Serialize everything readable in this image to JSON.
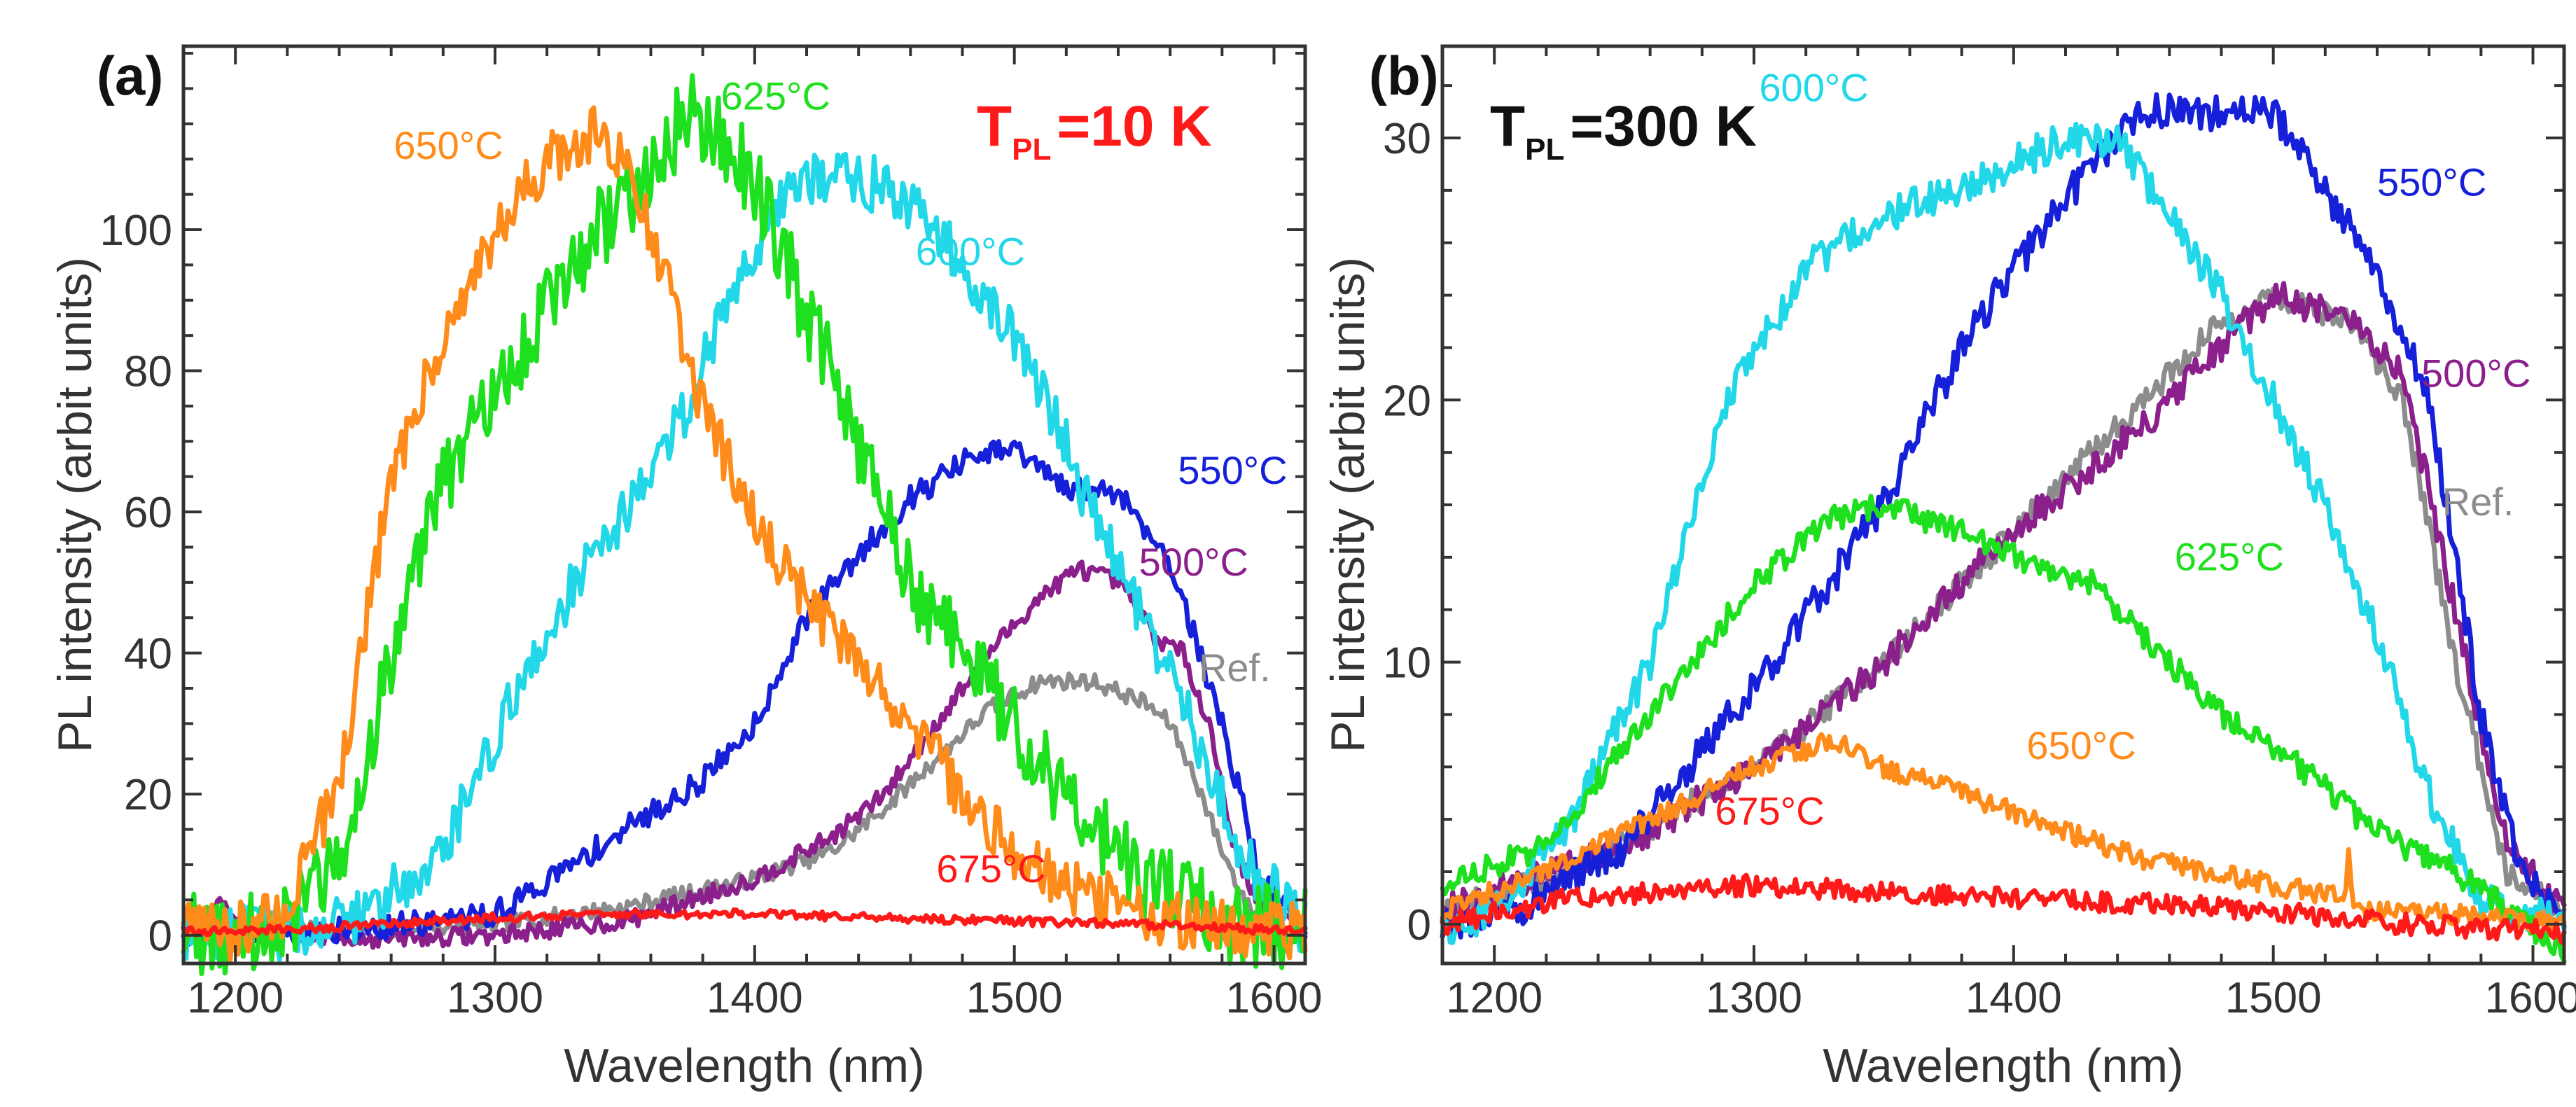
{
  "chart_data": [
    {
      "type": "line",
      "panel_label": "(a)",
      "annotation": {
        "main": "T",
        "sub": "PL",
        "rest": "=10 K",
        "color": "#ff1a1a"
      },
      "xlabel": "Wavelength (nm)",
      "ylabel": "PL intensity (arbit units)",
      "xlim": [
        1180,
        1612
      ],
      "ylim": [
        -4,
        126
      ],
      "xticks": [
        1200,
        1300,
        1400,
        1500,
        1600
      ],
      "yticks": [
        0,
        20,
        40,
        60,
        80,
        100
      ],
      "grid": false,
      "series": [
        {
          "name": "Ref.",
          "color": "#8c8c8c",
          "label_at": [
            1571,
            36
          ],
          "noise": 1.2,
          "points": [
            [
              1180,
              0.5
            ],
            [
              1200,
              0.5
            ],
            [
              1250,
              0.8
            ],
            [
              1300,
              1.5
            ],
            [
              1350,
              4
            ],
            [
              1400,
              8
            ],
            [
              1430,
              12
            ],
            [
              1450,
              18
            ],
            [
              1470,
              25
            ],
            [
              1490,
              32
            ],
            [
              1510,
              36
            ],
            [
              1530,
              36
            ],
            [
              1550,
              33
            ],
            [
              1560,
              30
            ],
            [
              1570,
              22
            ],
            [
              1580,
              12
            ],
            [
              1590,
              4
            ],
            [
              1600,
              1.5
            ],
            [
              1612,
              0.5
            ]
          ]
        },
        {
          "name": "500°C",
          "color": "#8b1f8b",
          "label_at": [
            1548,
            51
          ],
          "noise": 1.3,
          "points": [
            [
              1180,
              0.5
            ],
            [
              1190,
              2
            ],
            [
              1195,
              5
            ],
            [
              1200,
              1
            ],
            [
              1220,
              0.3
            ],
            [
              1250,
              -0.5
            ],
            [
              1300,
              0
            ],
            [
              1350,
              2
            ],
            [
              1400,
              8
            ],
            [
              1430,
              14
            ],
            [
              1450,
              20
            ],
            [
              1470,
              30
            ],
            [
              1490,
              40
            ],
            [
              1510,
              48
            ],
            [
              1525,
              52
            ],
            [
              1540,
              50
            ],
            [
              1555,
              42
            ],
            [
              1565,
              40
            ],
            [
              1575,
              30
            ],
            [
              1585,
              12
            ],
            [
              1595,
              4
            ],
            [
              1612,
              1
            ]
          ]
        },
        {
          "name": "550°C",
          "color": "#1520d8",
          "label_at": [
            1563,
            64
          ],
          "noise": 1.8,
          "points": [
            [
              1180,
              0.5
            ],
            [
              1220,
              0.5
            ],
            [
              1250,
              1
            ],
            [
              1280,
              2
            ],
            [
              1300,
              3
            ],
            [
              1330,
              10
            ],
            [
              1350,
              15
            ],
            [
              1380,
              22
            ],
            [
              1400,
              30
            ],
            [
              1420,
              45
            ],
            [
              1440,
              54
            ],
            [
              1460,
              62
            ],
            [
              1480,
              67
            ],
            [
              1500,
              69
            ],
            [
              1520,
              63
            ],
            [
              1540,
              63
            ],
            [
              1560,
              53
            ],
            [
              1580,
              30
            ],
            [
              1595,
              8
            ],
            [
              1612,
              1
            ]
          ]
        },
        {
          "name": "600°C",
          "color": "#22d8e8",
          "label_at": [
            1462,
            95
          ],
          "noise": 4,
          "points": [
            [
              1180,
              0.3
            ],
            [
              1220,
              0.5
            ],
            [
              1250,
              3
            ],
            [
              1280,
              12
            ],
            [
              1300,
              28
            ],
            [
              1330,
              50
            ],
            [
              1350,
              60
            ],
            [
              1370,
              72
            ],
            [
              1390,
              90
            ],
            [
              1410,
              105
            ],
            [
              1430,
              108
            ],
            [
              1450,
              106
            ],
            [
              1470,
              100
            ],
            [
              1490,
              90
            ],
            [
              1510,
              78
            ],
            [
              1530,
              60
            ],
            [
              1550,
              45
            ],
            [
              1570,
              28
            ],
            [
              1590,
              10
            ],
            [
              1612,
              1
            ]
          ]
        },
        {
          "name": "625°C",
          "color": "#1fe01f",
          "label_at": [
            1387,
            117
          ],
          "noise": 6,
          "points": [
            [
              1180,
              0.3
            ],
            [
              1200,
              0.5
            ],
            [
              1220,
              2
            ],
            [
              1240,
              10
            ],
            [
              1260,
              40
            ],
            [
              1280,
              65
            ],
            [
              1300,
              75
            ],
            [
              1320,
              90
            ],
            [
              1340,
              100
            ],
            [
              1360,
              108
            ],
            [
              1375,
              117
            ],
            [
              1390,
              112
            ],
            [
              1400,
              107
            ],
            [
              1420,
              88
            ],
            [
              1440,
              70
            ],
            [
              1460,
              50
            ],
            [
              1480,
              40
            ],
            [
              1500,
              30
            ],
            [
              1520,
              20
            ],
            [
              1550,
              8
            ],
            [
              1580,
              2
            ],
            [
              1612,
              0.5
            ]
          ]
        },
        {
          "name": "650°C",
          "color": "#ff8c1a",
          "label_at": [
            1261,
            110
          ],
          "noise": 4,
          "points": [
            [
              1180,
              0.5
            ],
            [
              1200,
              0.5
            ],
            [
              1220,
              4
            ],
            [
              1240,
              22
            ],
            [
              1260,
              65
            ],
            [
              1280,
              85
            ],
            [
              1300,
              100
            ],
            [
              1320,
              110
            ],
            [
              1340,
              114
            ],
            [
              1350,
              110
            ],
            [
              1360,
              100
            ],
            [
              1380,
              75
            ],
            [
              1400,
              58
            ],
            [
              1420,
              48
            ],
            [
              1440,
              38
            ],
            [
              1460,
              30
            ],
            [
              1480,
              20
            ],
            [
              1500,
              12
            ],
            [
              1520,
              7
            ],
            [
              1550,
              3
            ],
            [
              1580,
              1
            ],
            [
              1612,
              0.5
            ]
          ]
        },
        {
          "name": "675°C",
          "color": "#ff1a1a",
          "label_at": [
            1470,
            7.5
          ],
          "noise": 0.6,
          "points": [
            [
              1180,
              0.5
            ],
            [
              1230,
              1
            ],
            [
              1300,
              2.5
            ],
            [
              1350,
              3
            ],
            [
              1400,
              3
            ],
            [
              1450,
              2.5
            ],
            [
              1500,
              2
            ],
            [
              1550,
              1.5
            ],
            [
              1612,
              0.5
            ]
          ]
        }
      ]
    },
    {
      "type": "line",
      "panel_label": "(b)",
      "annotation": {
        "main": "T",
        "sub": "PL",
        "rest": "=300 K",
        "color": "#111111"
      },
      "xlabel": "Wavelength (nm)",
      "ylabel": "PL intensity (arbit units)",
      "xlim": [
        1180,
        1612
      ],
      "ylim": [
        -1.5,
        33.5
      ],
      "xticks": [
        1200,
        1300,
        1400,
        1500,
        1600
      ],
      "yticks": [
        0,
        10,
        20,
        30
      ],
      "grid": false,
      "series": [
        {
          "name": "Ref.",
          "color": "#8c8c8c",
          "label_at": [
            1565,
            15.6
          ],
          "noise": 0.5,
          "points": [
            [
              1180,
              0.5
            ],
            [
              1230,
              2
            ],
            [
              1300,
              6
            ],
            [
              1350,
              10
            ],
            [
              1400,
              15
            ],
            [
              1450,
              20
            ],
            [
              1480,
              23
            ],
            [
              1500,
              24
            ],
            [
              1530,
              23
            ],
            [
              1550,
              20
            ],
            [
              1570,
              10
            ],
            [
              1590,
              2
            ],
            [
              1612,
              0.5
            ]
          ]
        },
        {
          "name": "500°C",
          "color": "#8b1f8b",
          "label_at": [
            1557,
            20.5
          ],
          "noise": 0.6,
          "points": [
            [
              1180,
              0.5
            ],
            [
              1220,
              2
            ],
            [
              1250,
              3
            ],
            [
              1300,
              6
            ],
            [
              1350,
              10
            ],
            [
              1400,
              15
            ],
            [
              1450,
              19
            ],
            [
              1480,
              22
            ],
            [
              1500,
              24
            ],
            [
              1530,
              23
            ],
            [
              1550,
              21
            ],
            [
              1570,
              12
            ],
            [
              1590,
              3
            ],
            [
              1612,
              0.5
            ]
          ]
        },
        {
          "name": "550°C",
          "color": "#1520d8",
          "label_at": [
            1540,
            27.8
          ],
          "noise": 0.7,
          "points": [
            [
              1180,
              0
            ],
            [
              1210,
              0.5
            ],
            [
              1250,
              3
            ],
            [
              1300,
              9
            ],
            [
              1350,
              16
            ],
            [
              1380,
              22
            ],
            [
              1400,
              25
            ],
            [
              1430,
              29
            ],
            [
              1450,
              31
            ],
            [
              1470,
              31
            ],
            [
              1500,
              31
            ],
            [
              1520,
              28
            ],
            [
              1540,
              25
            ],
            [
              1560,
              20
            ],
            [
              1580,
              8
            ],
            [
              1595,
              2
            ],
            [
              1612,
              0
            ]
          ]
        },
        {
          "name": "600°C",
          "color": "#22d8e8",
          "label_at": [
            1302,
            31.4
          ],
          "noise": 0.7,
          "points": [
            [
              1180,
              -0.5
            ],
            [
              1200,
              0.5
            ],
            [
              1230,
              4
            ],
            [
              1260,
              10
            ],
            [
              1290,
              20
            ],
            [
              1320,
              25
            ],
            [
              1350,
              27
            ],
            [
              1380,
              28
            ],
            [
              1400,
              29
            ],
            [
              1420,
              30
            ],
            [
              1440,
              30
            ],
            [
              1460,
              27
            ],
            [
              1480,
              24
            ],
            [
              1500,
              20
            ],
            [
              1520,
              16
            ],
            [
              1540,
              11
            ],
            [
              1560,
              5
            ],
            [
              1580,
              1
            ],
            [
              1612,
              0
            ]
          ]
        },
        {
          "name": "625°C",
          "color": "#1fe01f",
          "label_at": [
            1462,
            13.5
          ],
          "noise": 0.5,
          "points": [
            [
              1180,
              1.5
            ],
            [
              1220,
              3
            ],
            [
              1260,
              8
            ],
            [
              1300,
              13
            ],
            [
              1330,
              15.5
            ],
            [
              1350,
              16
            ],
            [
              1380,
              15
            ],
            [
              1400,
              14
            ],
            [
              1430,
              13
            ],
            [
              1450,
              11
            ],
            [
              1480,
              8
            ],
            [
              1510,
              6
            ],
            [
              1540,
              3.5
            ],
            [
              1570,
              2
            ],
            [
              1612,
              -1
            ]
          ]
        },
        {
          "name": "650°C",
          "color": "#ff8c1a",
          "label_at": [
            1405,
            6.3
          ],
          "noise": 0.4,
          "points": [
            [
              1180,
              0.5
            ],
            [
              1220,
              2
            ],
            [
              1260,
              4
            ],
            [
              1300,
              6
            ],
            [
              1330,
              7
            ],
            [
              1350,
              6
            ],
            [
              1380,
              5
            ],
            [
              1420,
              3.5
            ],
            [
              1450,
              2.5
            ],
            [
              1500,
              1.5
            ],
            [
              1528,
              1
            ],
            [
              1529,
              3
            ],
            [
              1531,
              0.5
            ],
            [
              1560,
              0.5
            ],
            [
              1612,
              0
            ]
          ]
        },
        {
          "name": "675°C",
          "color": "#ff1a1a",
          "label_at": [
            1285,
            3.8
          ],
          "noise": 0.4,
          "points": [
            [
              1180,
              0
            ],
            [
              1230,
              1
            ],
            [
              1300,
              1.5
            ],
            [
              1350,
              1.2
            ],
            [
              1400,
              1
            ],
            [
              1450,
              0.8
            ],
            [
              1500,
              0.5
            ],
            [
              1550,
              0
            ],
            [
              1612,
              -0.3
            ]
          ]
        }
      ]
    }
  ]
}
